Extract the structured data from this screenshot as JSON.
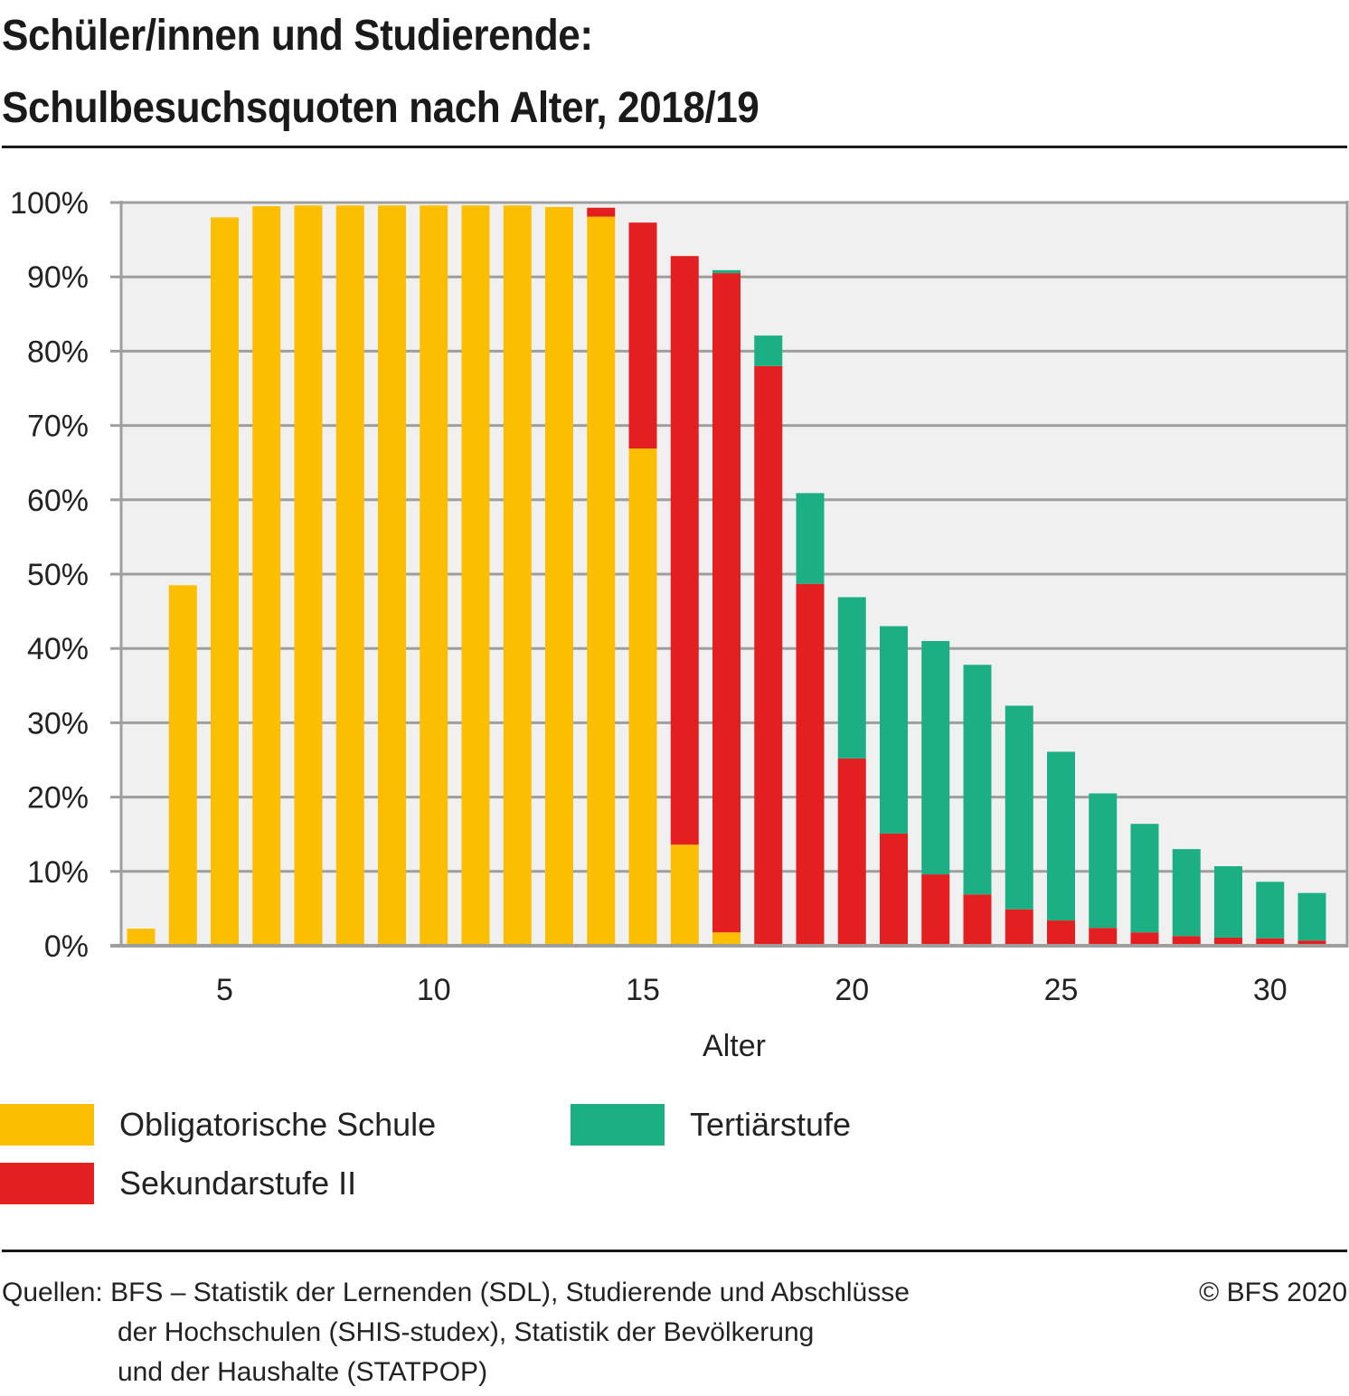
{
  "header": {
    "title_line1": "Schüler/innen und Studierende:",
    "title_line2": "Schulbesuchsquoten nach Alter, 2018/19"
  },
  "chart_data": {
    "type": "bar",
    "stacked": true,
    "title": "Schüler/innen und Studierende: Schulbesuchsquoten nach Alter, 2018/19",
    "xlabel": "Alter",
    "ylabel": "",
    "x": [
      3,
      4,
      5,
      6,
      7,
      8,
      9,
      10,
      11,
      12,
      13,
      14,
      15,
      16,
      17,
      18,
      19,
      20,
      21,
      22,
      23,
      24,
      25,
      26,
      27,
      28,
      29,
      30,
      31
    ],
    "xticks": [
      5,
      10,
      15,
      20,
      25,
      30
    ],
    "xtick_labels": [
      "5",
      "10",
      "15",
      "20",
      "25",
      "30"
    ],
    "ylim": [
      0,
      100
    ],
    "yticks": [
      0,
      10,
      20,
      30,
      40,
      50,
      60,
      70,
      80,
      90,
      100
    ],
    "ytick_labels": [
      "0%",
      "10%",
      "20%",
      "30%",
      "40%",
      "50%",
      "60%",
      "70%",
      "80%",
      "90%",
      "100%"
    ],
    "grid": true,
    "legend_position": "bottom",
    "series": [
      {
        "name": "Obligatorische Schule",
        "color": "#fbbe00",
        "values": [
          2.3,
          48.5,
          98.0,
          99.5,
          99.6,
          99.6,
          99.6,
          99.6,
          99.6,
          99.6,
          99.4,
          98.1,
          66.9,
          13.6,
          1.8,
          0.2,
          0,
          0,
          0,
          0,
          0,
          0,
          0,
          0,
          0,
          0,
          0,
          0,
          0
        ]
      },
      {
        "name": "Sekundarstufe II",
        "color": "#e41f1f",
        "values": [
          0,
          0,
          0,
          0,
          0,
          0,
          0,
          0,
          0,
          0,
          0,
          1.2,
          30.4,
          79.2,
          88.7,
          77.8,
          48.7,
          25.2,
          15.1,
          9.6,
          6.9,
          4.9,
          3.4,
          2.4,
          1.8,
          1.3,
          1.1,
          1.0,
          0.7
        ]
      },
      {
        "name": "Tertiärstufe",
        "color": "#1daf84",
        "values": [
          0,
          0,
          0,
          0,
          0,
          0,
          0,
          0,
          0,
          0,
          0,
          0,
          0,
          0,
          0.4,
          4.1,
          12.2,
          21.7,
          27.9,
          31.4,
          30.9,
          27.4,
          22.7,
          18.1,
          14.6,
          11.7,
          9.6,
          7.6,
          6.4
        ]
      }
    ]
  },
  "legend": {
    "items": [
      {
        "label": "Obligatorische Schule",
        "color": "#fbbe00"
      },
      {
        "label": "Tertiärstufe",
        "color": "#1daf84"
      },
      {
        "label": "Sekundarstufe II",
        "color": "#e41f1f"
      }
    ]
  },
  "footer": {
    "sources_line1": "Quellen: BFS – Statistik der Lernenden (SDL), Studierende und Abschlüsse",
    "sources_line2": "der Hochschulen (SHIS-studex), Statistik der Bevölkerung",
    "sources_line3": "und der Haushalte (STATPOP)",
    "copyright": "© BFS 2020"
  }
}
